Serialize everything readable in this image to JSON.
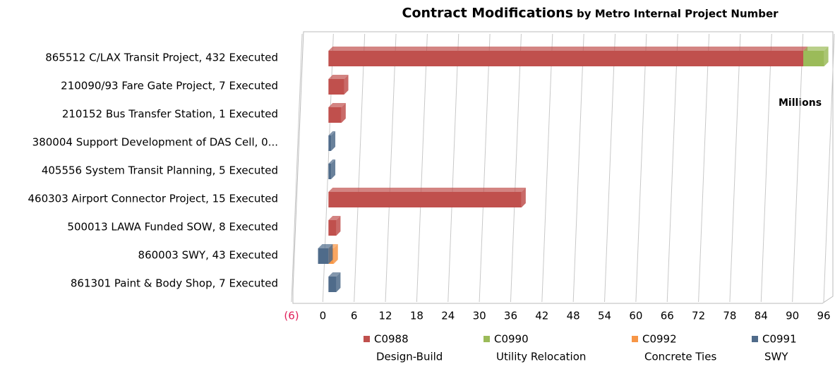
{
  "chart_data": {
    "type": "bar",
    "orientation": "horizontal",
    "stacked": true,
    "title": "Contract Modifications",
    "subtitle": "by Metro Internal Project Number",
    "annotation": "Millions",
    "categories": [
      "865512 C/LAX Transit Project, 432 Executed",
      "210090/93 Fare Gate Project, 7 Executed",
      "210152 Bus Transfer Station, 1 Executed",
      "380004 Support Development of DAS Cell, 0...",
      "405556 System Transit Planning, 5 Executed",
      "460303 Airport Connector Project, 15 Executed",
      "500013 LAWA Funded SOW, 8 Executed",
      "860003 SWY, 43 Executed",
      "861301 Paint & Body Shop, 7 Executed"
    ],
    "series": [
      {
        "name": "C0988",
        "description": "Design-Build",
        "color": "#c0504d",
        "values": [
          91,
          3,
          2.5,
          0,
          0,
          37,
          1.5,
          0,
          0
        ]
      },
      {
        "name": "C0990",
        "description": "Utility Relocation",
        "color": "#9bbb59",
        "values": [
          4,
          0,
          0,
          0,
          0,
          0,
          0,
          0,
          0
        ]
      },
      {
        "name": "C0992",
        "description": "Concrete Ties",
        "color": "#f79646",
        "values": [
          0,
          0,
          0,
          0,
          0,
          0,
          0,
          1,
          0
        ]
      },
      {
        "name": "C0991",
        "description": "SWY",
        "color": "#4f6b8a",
        "values": [
          0,
          0,
          0,
          0.5,
          0.5,
          0,
          0,
          -2,
          1.5
        ]
      }
    ],
    "xlim": [
      -6,
      96
    ],
    "xticks": [
      {
        "value": -6,
        "label": "(6)"
      },
      0,
      6,
      12,
      18,
      24,
      30,
      36,
      42,
      48,
      54,
      60,
      66,
      72,
      78,
      84,
      90,
      96
    ],
    "grid": true
  }
}
